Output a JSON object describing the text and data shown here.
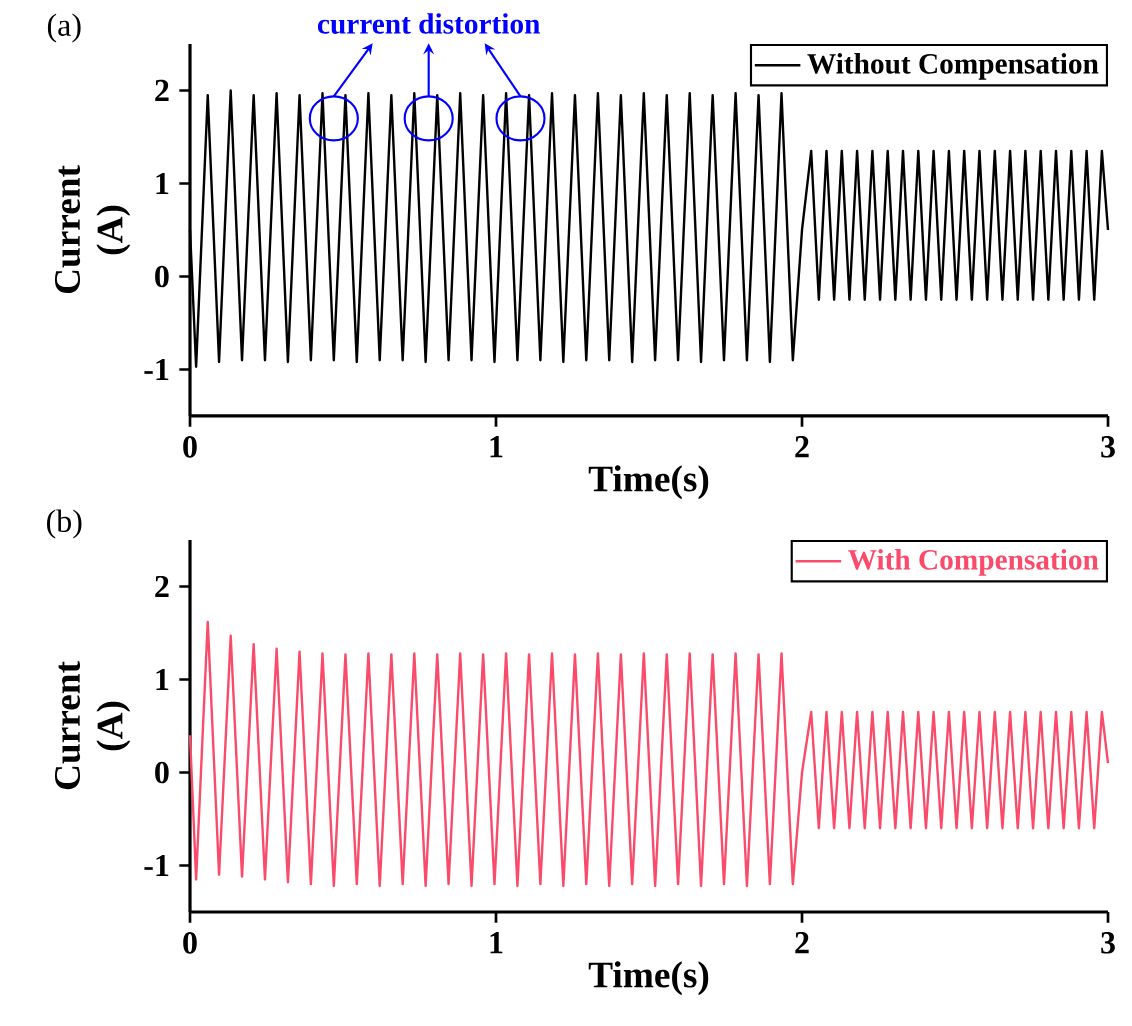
{
  "chart_data": [
    {
      "type": "line",
      "title": "(a)",
      "xlabel": "Time(s)",
      "ylabel": "Current (A)",
      "xlim": [
        0,
        3
      ],
      "ylim": [
        -1.5,
        2.5
      ],
      "xticks": [
        0,
        1,
        2,
        3
      ],
      "yticks": [
        -1,
        0,
        1,
        2
      ],
      "legend": "top right",
      "annotations": [
        {
          "text": "current distortion",
          "x": 0.78,
          "y": 1.7
        }
      ],
      "series": [
        {
          "name": "Without Compensation",
          "color": "#000000",
          "x": [
            0,
            0.02,
            0.058,
            0.095,
            0.133,
            0.17,
            0.208,
            0.245,
            0.283,
            0.32,
            0.358,
            0.395,
            0.433,
            0.47,
            0.508,
            0.545,
            0.583,
            0.62,
            0.658,
            0.695,
            0.733,
            0.77,
            0.808,
            0.845,
            0.883,
            0.92,
            0.958,
            0.995,
            1.033,
            1.07,
            1.108,
            1.145,
            1.183,
            1.22,
            1.258,
            1.295,
            1.333,
            1.37,
            1.408,
            1.445,
            1.483,
            1.52,
            1.558,
            1.595,
            1.633,
            1.67,
            1.708,
            1.745,
            1.783,
            1.82,
            1.858,
            1.895,
            1.933,
            1.97,
            2.0,
            2.03,
            2.055,
            2.08,
            2.105,
            2.13,
            2.155,
            2.18,
            2.205,
            2.23,
            2.255,
            2.28,
            2.305,
            2.33,
            2.355,
            2.38,
            2.405,
            2.43,
            2.455,
            2.48,
            2.505,
            2.53,
            2.555,
            2.58,
            2.605,
            2.63,
            2.655,
            2.68,
            2.705,
            2.73,
            2.755,
            2.78,
            2.805,
            2.83,
            2.855,
            2.88,
            2.905,
            2.93,
            2.955,
            2.98,
            3.0
          ],
          "values": [
            0.5,
            -0.97,
            1.95,
            -0.92,
            2.0,
            -0.9,
            1.95,
            -0.9,
            1.97,
            -0.92,
            1.95,
            -0.9,
            1.97,
            -0.9,
            1.95,
            -0.92,
            1.97,
            -0.9,
            1.95,
            -0.9,
            1.97,
            -0.92,
            1.95,
            -0.9,
            1.97,
            -0.9,
            1.95,
            -0.92,
            1.97,
            -0.9,
            1.95,
            -0.9,
            1.97,
            -0.92,
            1.95,
            -0.9,
            1.97,
            -0.9,
            1.95,
            -0.92,
            1.97,
            -0.9,
            1.95,
            -0.9,
            1.97,
            -0.92,
            1.95,
            -0.9,
            1.97,
            -0.9,
            1.95,
            -0.92,
            1.97,
            -0.9,
            0.5,
            1.35,
            -0.25,
            1.35,
            -0.25,
            1.35,
            -0.25,
            1.35,
            -0.25,
            1.35,
            -0.25,
            1.35,
            -0.25,
            1.35,
            -0.25,
            1.35,
            -0.25,
            1.35,
            -0.25,
            1.35,
            -0.25,
            1.35,
            -0.25,
            1.35,
            -0.25,
            1.35,
            -0.25,
            1.35,
            -0.25,
            1.35,
            -0.25,
            1.35,
            -0.25,
            1.35,
            -0.25,
            1.35,
            -0.25,
            1.35,
            -0.25,
            1.35,
            0.5
          ]
        }
      ]
    },
    {
      "type": "line",
      "title": "(b)",
      "xlabel": "Time(s)",
      "ylabel": "Current (A)",
      "xlim": [
        0,
        3
      ],
      "ylim": [
        -1.5,
        2.5
      ],
      "xticks": [
        0,
        1,
        2,
        3
      ],
      "yticks": [
        -1,
        0,
        1,
        2
      ],
      "legend": "top right",
      "series": [
        {
          "name": "With Compensation",
          "color": "#fa4b6b",
          "x": [
            0,
            0.02,
            0.058,
            0.095,
            0.133,
            0.17,
            0.208,
            0.245,
            0.283,
            0.32,
            0.358,
            0.395,
            0.433,
            0.47,
            0.508,
            0.545,
            0.583,
            0.62,
            0.658,
            0.695,
            0.733,
            0.77,
            0.808,
            0.845,
            0.883,
            0.92,
            0.958,
            0.995,
            1.033,
            1.07,
            1.108,
            1.145,
            1.183,
            1.22,
            1.258,
            1.295,
            1.333,
            1.37,
            1.408,
            1.445,
            1.483,
            1.52,
            1.558,
            1.595,
            1.633,
            1.67,
            1.708,
            1.745,
            1.783,
            1.82,
            1.858,
            1.895,
            1.933,
            1.97,
            2.0,
            2.03,
            2.055,
            2.08,
            2.105,
            2.13,
            2.155,
            2.18,
            2.205,
            2.23,
            2.255,
            2.28,
            2.305,
            2.33,
            2.355,
            2.38,
            2.405,
            2.43,
            2.455,
            2.48,
            2.505,
            2.53,
            2.555,
            2.58,
            2.605,
            2.63,
            2.655,
            2.68,
            2.705,
            2.73,
            2.755,
            2.78,
            2.805,
            2.83,
            2.855,
            2.88,
            2.905,
            2.93,
            2.955,
            2.98,
            3.0
          ],
          "values": [
            0.4,
            -1.15,
            1.62,
            -1.1,
            1.47,
            -1.12,
            1.38,
            -1.15,
            1.33,
            -1.18,
            1.3,
            -1.2,
            1.28,
            -1.22,
            1.27,
            -1.2,
            1.28,
            -1.22,
            1.27,
            -1.2,
            1.28,
            -1.22,
            1.27,
            -1.2,
            1.28,
            -1.22,
            1.27,
            -1.2,
            1.28,
            -1.22,
            1.27,
            -1.2,
            1.28,
            -1.22,
            1.27,
            -1.2,
            1.28,
            -1.22,
            1.27,
            -1.2,
            1.28,
            -1.22,
            1.27,
            -1.2,
            1.28,
            -1.22,
            1.27,
            -1.2,
            1.28,
            -1.22,
            1.27,
            -1.2,
            1.28,
            -1.2,
            0.0,
            0.65,
            -0.6,
            0.65,
            -0.6,
            0.65,
            -0.6,
            0.65,
            -0.6,
            0.65,
            -0.6,
            0.65,
            -0.6,
            0.65,
            -0.6,
            0.65,
            -0.6,
            0.65,
            -0.6,
            0.65,
            -0.6,
            0.65,
            -0.6,
            0.65,
            -0.6,
            0.65,
            -0.6,
            0.65,
            -0.6,
            0.65,
            -0.6,
            0.65,
            -0.6,
            0.65,
            -0.6,
            0.65,
            -0.6,
            0.65,
            -0.6,
            0.65,
            0.1
          ]
        }
      ]
    }
  ]
}
